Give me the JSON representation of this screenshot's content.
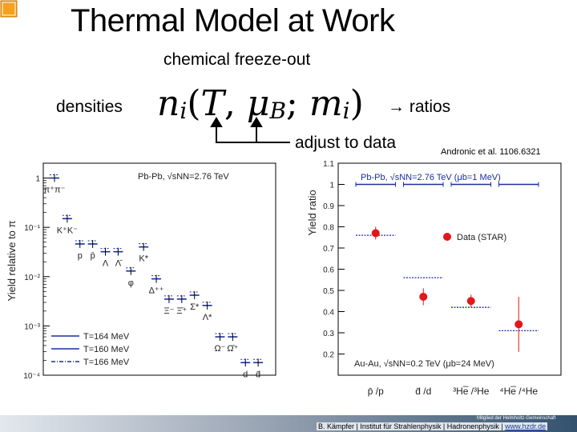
{
  "slide": {
    "title": "Thermal Model at Work",
    "subtitle": "chemical freeze-out",
    "densities_label": "densities",
    "formula_n": "n",
    "formula_i": "i",
    "formula_open": "(",
    "formula_T": "T",
    "formula_comma": ",",
    "formula_mu": "μ",
    "formula_B": "B",
    "formula_semi": ";",
    "formula_m": "m",
    "formula_i2": "i",
    "formula_close": ")",
    "ratios_label": "→ ratios",
    "adjust_label": "adjust to data",
    "citation": "Andronic et al. 1106.6321",
    "colors": {
      "arrow": "#000000",
      "data_red": "#e3161b",
      "model_blue": "#1a2ea0"
    }
  },
  "footer": {
    "helmholtz": "Mitglied der Helmholtz-Gemeinschaft",
    "credit": "B. Kämpfer | Institut für Strahlenphysik | Hadronenphysik | ",
    "link": "www.hzdr.de"
  },
  "chart_data": [
    {
      "type": "scatter",
      "ylabel": "Yield relative to π",
      "yscale": "log",
      "ylim": [
        0.0001,
        2
      ],
      "y_ticks": [
        "1",
        "10⁻¹",
        "10⁻²",
        "10⁻³",
        "10⁻⁴"
      ],
      "header": "Pb-Pb, √sNN=2.76 TeV",
      "legend": [
        {
          "name": "T=164 MeV",
          "style": "solid"
        },
        {
          "name": "T=160 MeV",
          "style": "solid"
        },
        {
          "name": "T=166 MeV",
          "style": "dash-dot"
        }
      ],
      "legend_placement": "bottom-left",
      "particles": [
        {
          "label": "π⁺π⁻",
          "y": 1.0
        },
        {
          "label": "K⁺K⁻",
          "y": 0.15
        },
        {
          "label": "p",
          "y": 0.046
        },
        {
          "label": "p̄",
          "y": 0.046
        },
        {
          "label": "Λ",
          "y": 0.032
        },
        {
          "label": "Λ̄",
          "y": 0.032
        },
        {
          "label": "φ",
          "y": 0.013
        },
        {
          "label": "K*",
          "y": 0.04
        },
        {
          "label": "Δ⁺⁺",
          "y": 0.009
        },
        {
          "label": "Ξ⁻",
          "y": 0.0035
        },
        {
          "label": "Ξ̄⁺",
          "y": 0.0035
        },
        {
          "label": "Σ*",
          "y": 0.0042
        },
        {
          "label": "Λ*",
          "y": 0.0026
        },
        {
          "label": "Ω⁻",
          "y": 0.0006
        },
        {
          "label": "Ω̄⁺",
          "y": 0.0006
        },
        {
          "label": "d",
          "y": 0.00018
        },
        {
          "label": "d̄",
          "y": 0.00018
        }
      ]
    },
    {
      "type": "scatter",
      "ylabel": "Yield ratio",
      "ylim": [
        0.1,
        1.1
      ],
      "y_ticks": [
        "1.1",
        "1",
        "0.9",
        "0.8",
        "0.7",
        "0.6",
        "0.5",
        "0.4",
        "0.3",
        "0.2"
      ],
      "header": "Pb-Pb, √sNN=2.76 TeV (μb=1 MeV)",
      "annotation": "Au-Au, √sNN=0.2 TeV (μb=24 MeV)",
      "categories": [
        "p̄ /p",
        "d̄ /d",
        "³He̅ /³He",
        "⁴He̅ /⁴He"
      ],
      "series": [
        {
          "name": "Data (STAR)",
          "values": [
            0.77,
            0.47,
            0.45,
            0.34
          ],
          "errors": [
            0.03,
            0.04,
            0.03,
            0.13
          ]
        },
        {
          "values": [
            1.0,
            1.0,
            1.0,
            1.0
          ]
        },
        {
          "values": [
            0.76,
            0.56,
            0.42,
            0.31
          ]
        }
      ],
      "legend_placement": "center-right"
    }
  ]
}
